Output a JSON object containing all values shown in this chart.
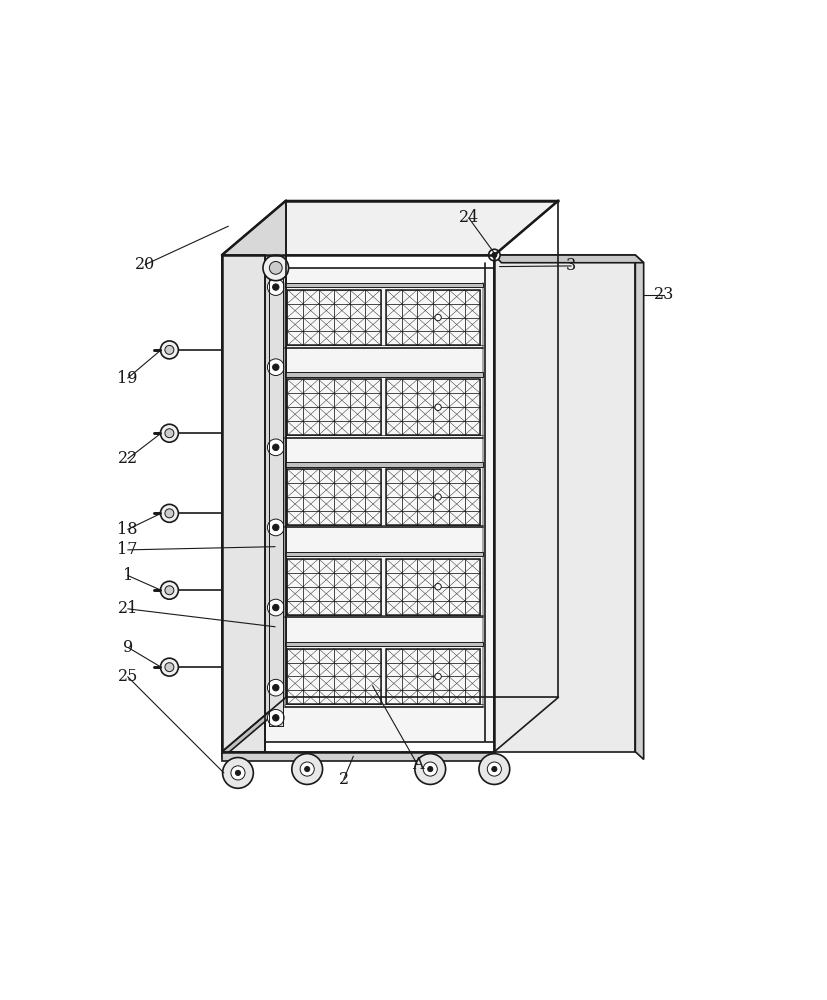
{
  "bg_color": "#ffffff",
  "line_color": "#1a1a1a",
  "line_width": 1.2,
  "thin_line": 0.7,
  "thick_line": 1.8,
  "fig_width": 8.27,
  "fig_height": 10.0
}
